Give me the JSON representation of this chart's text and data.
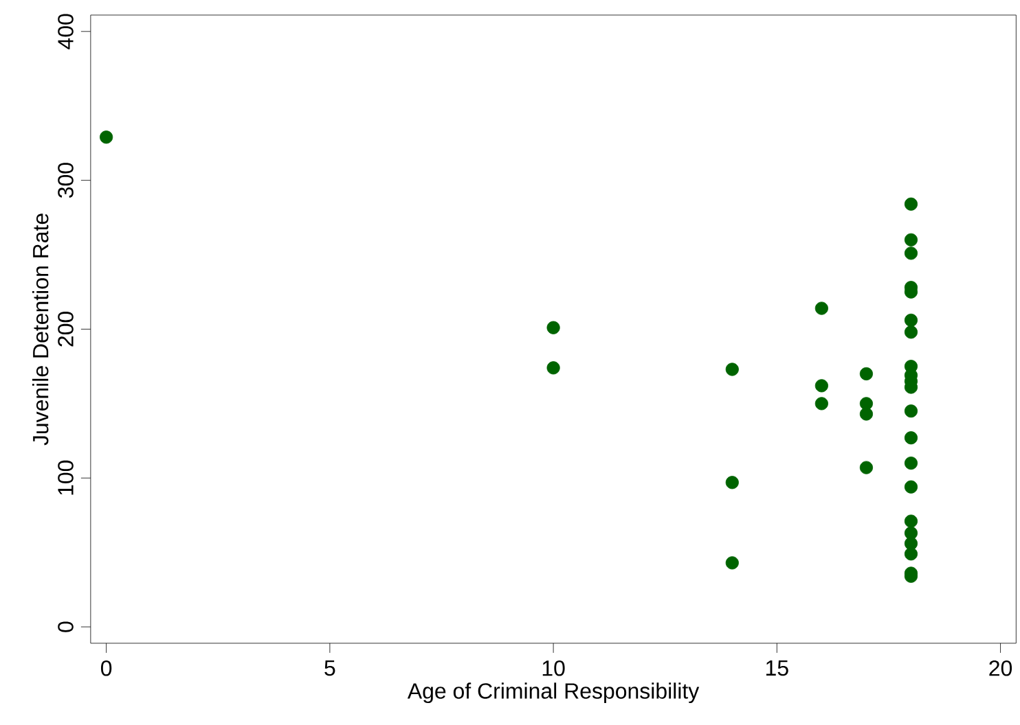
{
  "chart_data": {
    "type": "scatter",
    "xlabel": "Age of Criminal Responsibility",
    "ylabel": "Juvenile Detention Rate",
    "x": [
      0,
      10,
      10,
      14,
      14,
      14,
      16,
      16,
      16,
      17,
      17,
      17,
      17,
      18,
      18,
      18,
      18,
      18,
      18,
      18,
      18,
      18,
      18,
      18,
      18,
      18,
      18,
      18,
      18,
      18,
      18,
      18,
      18,
      18
    ],
    "values": [
      329,
      201,
      174,
      173,
      97,
      43,
      214,
      162,
      150,
      170,
      150,
      143,
      107,
      284,
      260,
      251,
      228,
      225,
      206,
      198,
      175,
      169,
      165,
      161,
      145,
      127,
      110,
      94,
      71,
      63,
      56,
      49,
      34,
      36
    ],
    "color": "#006400",
    "grid": false,
    "xlim": [
      -0.35,
      20.35
    ],
    "ylim": [
      -11,
      411
    ],
    "xticks": [
      0,
      5,
      10,
      15,
      20
    ],
    "yticks": [
      0,
      100,
      200,
      300,
      400
    ]
  }
}
